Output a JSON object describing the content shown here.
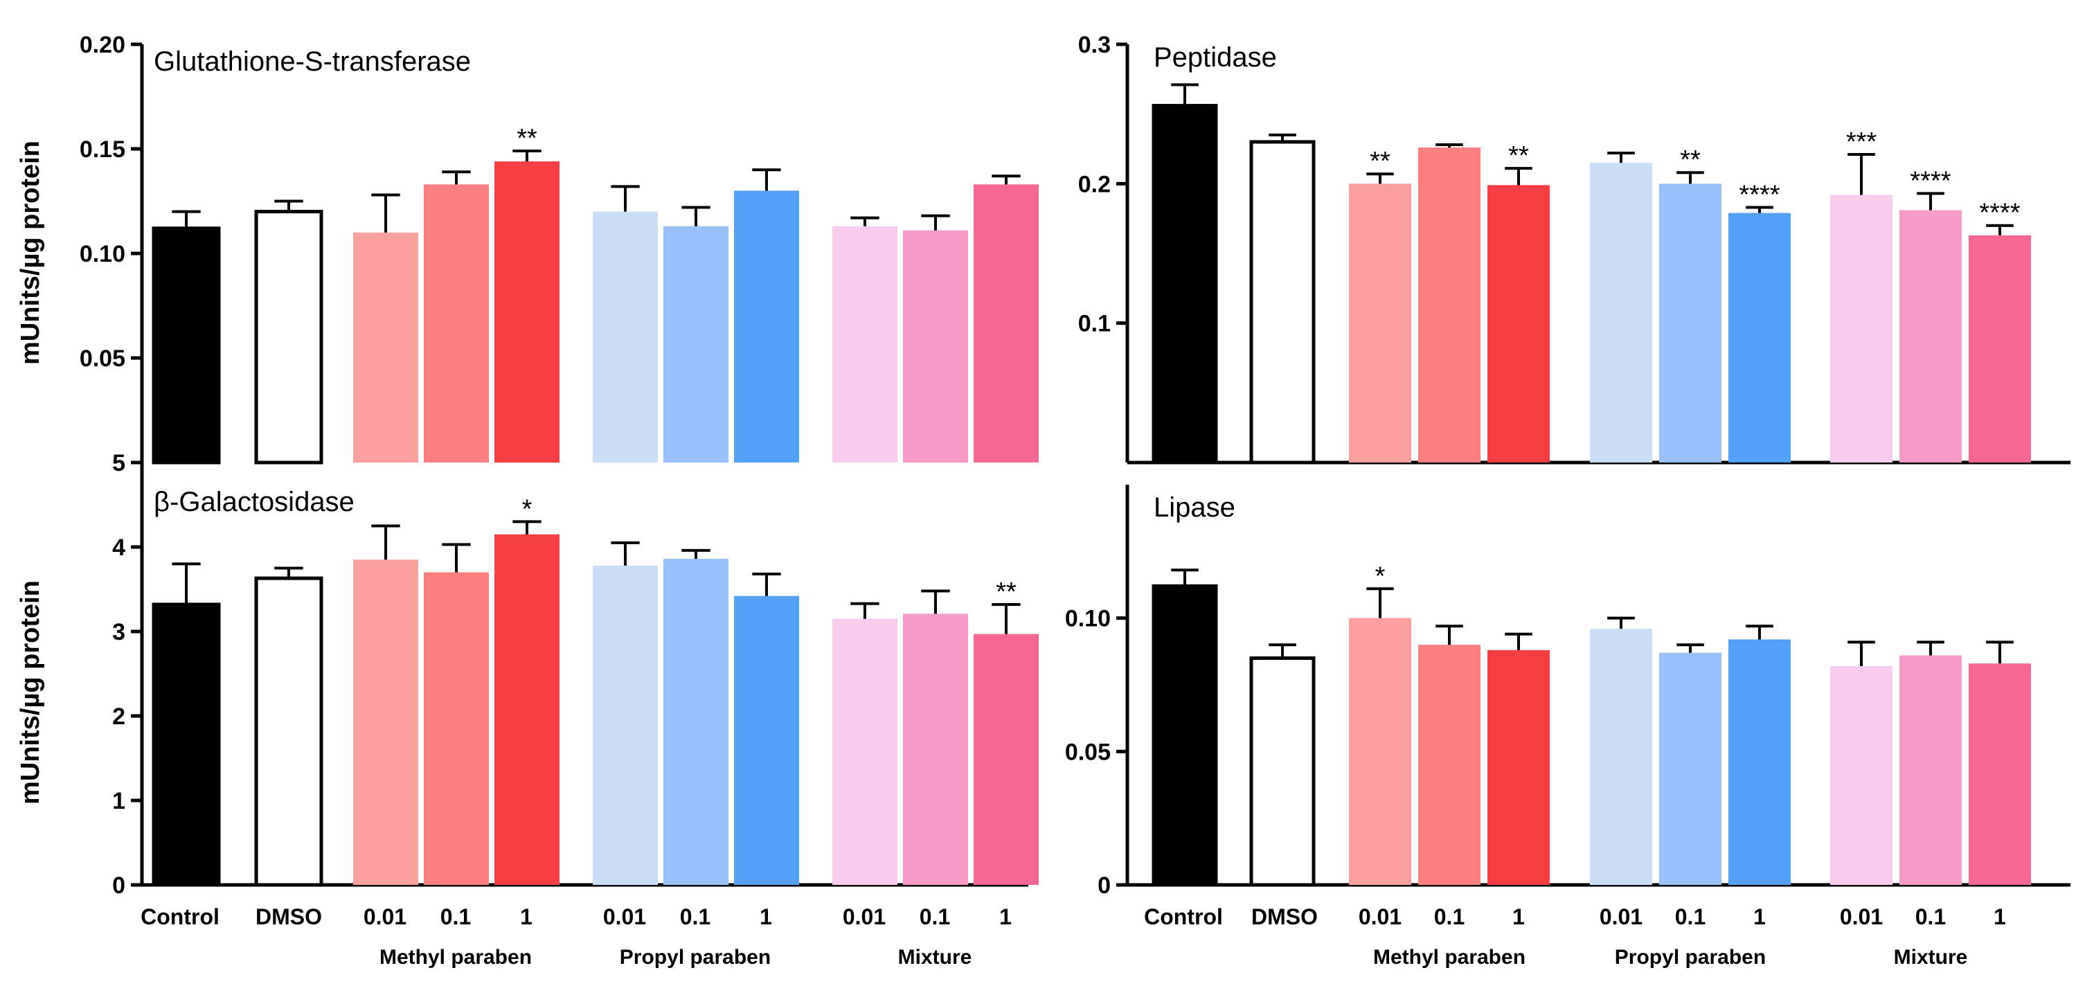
{
  "chart_data": [
    {
      "id": "gst",
      "type": "bar",
      "title": "Glutathione-S-transferase",
      "ylabel": "mUnits/µg protein",
      "ylim": [
        0,
        0.2
      ],
      "yticks": [
        0.05,
        0.1,
        0.15,
        0.2
      ],
      "ytick_labels": [
        "0.05",
        "0.10",
        "0.15",
        "0.20"
      ],
      "values": [
        0.112,
        0.12,
        0.11,
        0.133,
        0.144,
        0.12,
        0.113,
        0.13,
        0.113,
        0.111,
        0.133
      ],
      "errors": [
        0.008,
        0.005,
        0.018,
        0.006,
        0.005,
        0.012,
        0.009,
        0.01,
        0.004,
        0.007,
        0.004
      ],
      "significance": [
        "",
        "",
        "",
        "",
        "**",
        "",
        "",
        "",
        "",
        "",
        ""
      ]
    },
    {
      "id": "peptidase",
      "type": "bar",
      "title": "Peptidase",
      "ylabel": "",
      "ylim": [
        0,
        0.3
      ],
      "yticks": [
        0.1,
        0.2,
        0.3
      ],
      "ytick_labels": [
        "0.1",
        "0.2",
        "0.3"
      ],
      "values": [
        0.256,
        0.23,
        0.2,
        0.226,
        0.199,
        0.215,
        0.2,
        0.179,
        0.192,
        0.181,
        0.163
      ],
      "errors": [
        0.015,
        0.005,
        0.007,
        0.002,
        0.012,
        0.007,
        0.008,
        0.004,
        0.029,
        0.012,
        0.007
      ],
      "significance": [
        "",
        "",
        "**",
        "",
        "**",
        "",
        "**",
        "****",
        "***",
        "****",
        "****"
      ]
    },
    {
      "id": "galactosidase",
      "type": "bar",
      "title": "β-Galactosidase",
      "ylabel": "mUnits/µg protein",
      "ylim": [
        0,
        5
      ],
      "yticks": [
        0,
        1,
        2,
        3,
        4,
        5
      ],
      "ytick_labels": [
        "0",
        "1",
        "2",
        "3",
        "4",
        "5"
      ],
      "values": [
        3.32,
        3.63,
        3.85,
        3.7,
        4.15,
        3.78,
        3.86,
        3.42,
        3.15,
        3.21,
        2.97
      ],
      "errors": [
        0.48,
        0.12,
        0.4,
        0.33,
        0.15,
        0.27,
        0.1,
        0.26,
        0.18,
        0.27,
        0.35
      ],
      "significance": [
        "",
        "",
        "",
        "",
        "*",
        "",
        "",
        "",
        "",
        "",
        "**"
      ]
    },
    {
      "id": "lipase",
      "type": "bar",
      "title": "Lipase",
      "ylabel": "",
      "ylim": [
        0,
        0.15
      ],
      "yticks": [
        0,
        0.05,
        0.1
      ],
      "ytick_labels": [
        "0",
        "0.05",
        "0.10"
      ],
      "values": [
        0.112,
        0.085,
        0.1,
        0.09,
        0.088,
        0.096,
        0.087,
        0.092,
        0.082,
        0.086,
        0.083
      ],
      "errors": [
        0.006,
        0.005,
        0.011,
        0.007,
        0.006,
        0.004,
        0.003,
        0.005,
        0.009,
        0.005,
        0.008
      ],
      "significance": [
        "",
        "",
        "*",
        "",
        "",
        "",
        "",
        "",
        "",
        "",
        ""
      ]
    }
  ],
  "categories": [
    "Control",
    "DMSO",
    "0.01",
    "0.1",
    "1",
    "0.01",
    "0.1",
    "1",
    "0.01",
    "0.1",
    "1"
  ],
  "groups": [
    "Methyl paraben",
    "Propyl paraben",
    "Mixture"
  ],
  "colors": {
    "bar_fills": [
      "#000000",
      "#ffffff",
      "#f9a09c",
      "#fa7f7e",
      "#f53e42",
      "#c9ddf7",
      "#96c0f7",
      "#52a0f8",
      "#f8cbef",
      "#f799c6",
      "#f66893"
    ],
    "bar_stroke": "#000000",
    "axis": "#000000"
  }
}
